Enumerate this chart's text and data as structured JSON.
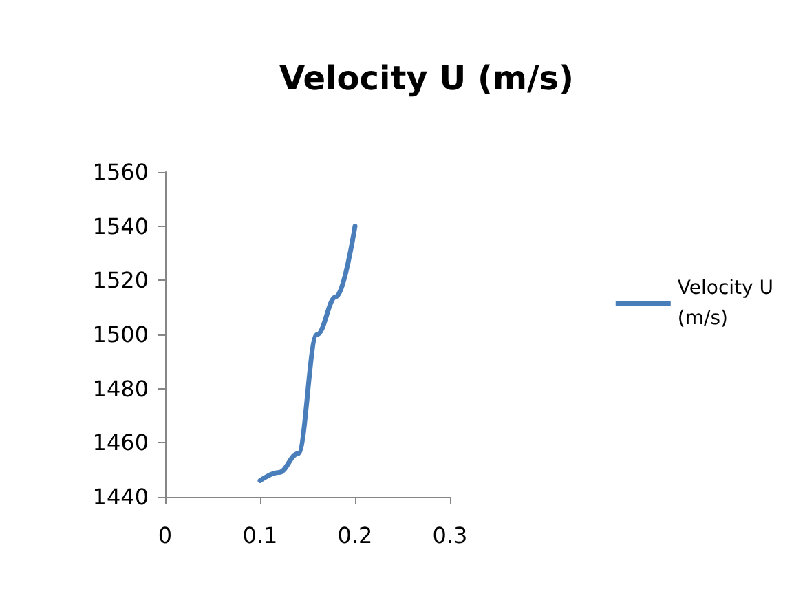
{
  "chart_data": {
    "type": "line",
    "title": "Velocity U (m/s)",
    "x": [
      0.1,
      0.12,
      0.14,
      0.16,
      0.18,
      0.2
    ],
    "series": [
      {
        "name": "Velocity U\n(m/s)",
        "color": "#4a7ebb",
        "values": [
          1446,
          1449,
          1456,
          1500,
          1514,
          1540
        ]
      }
    ],
    "xlim": [
      0,
      0.3
    ],
    "xticks": [
      0,
      0.1,
      0.2,
      0.3
    ],
    "ylim": [
      1440,
      1560
    ],
    "yticks": [
      1440,
      1460,
      1480,
      1500,
      1520,
      1540,
      1560
    ],
    "grid": false,
    "legend": "right",
    "marker": "none",
    "line_style": "solid"
  }
}
